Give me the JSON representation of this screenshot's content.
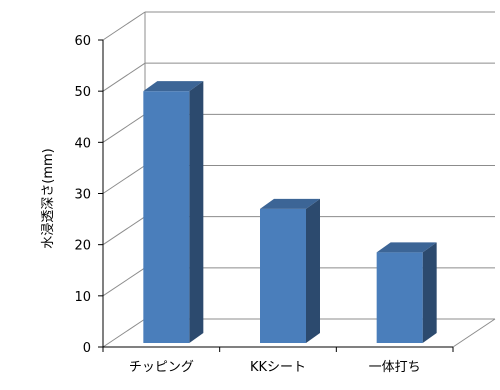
{
  "chart_data": {
    "type": "bar",
    "style": "3d-column",
    "title": "",
    "xlabel": "",
    "ylabel": "水浸透深さ(mm)",
    "categories": [
      "チッピング",
      "KKシート",
      "一体打ち"
    ],
    "series": [
      {
        "values": [
          50,
          27,
          18.5
        ]
      }
    ],
    "ylim": [
      0,
      60
    ],
    "yticks": [
      0,
      10,
      20,
      30,
      40,
      50,
      60
    ],
    "grid": true,
    "legend": "none",
    "colors": {
      "bar_front": "#4a7ebb",
      "bar_side": "#2c4a6e",
      "bar_top": "#3c6596",
      "grid": "#8c8c8c",
      "axis": "#000000"
    }
  }
}
